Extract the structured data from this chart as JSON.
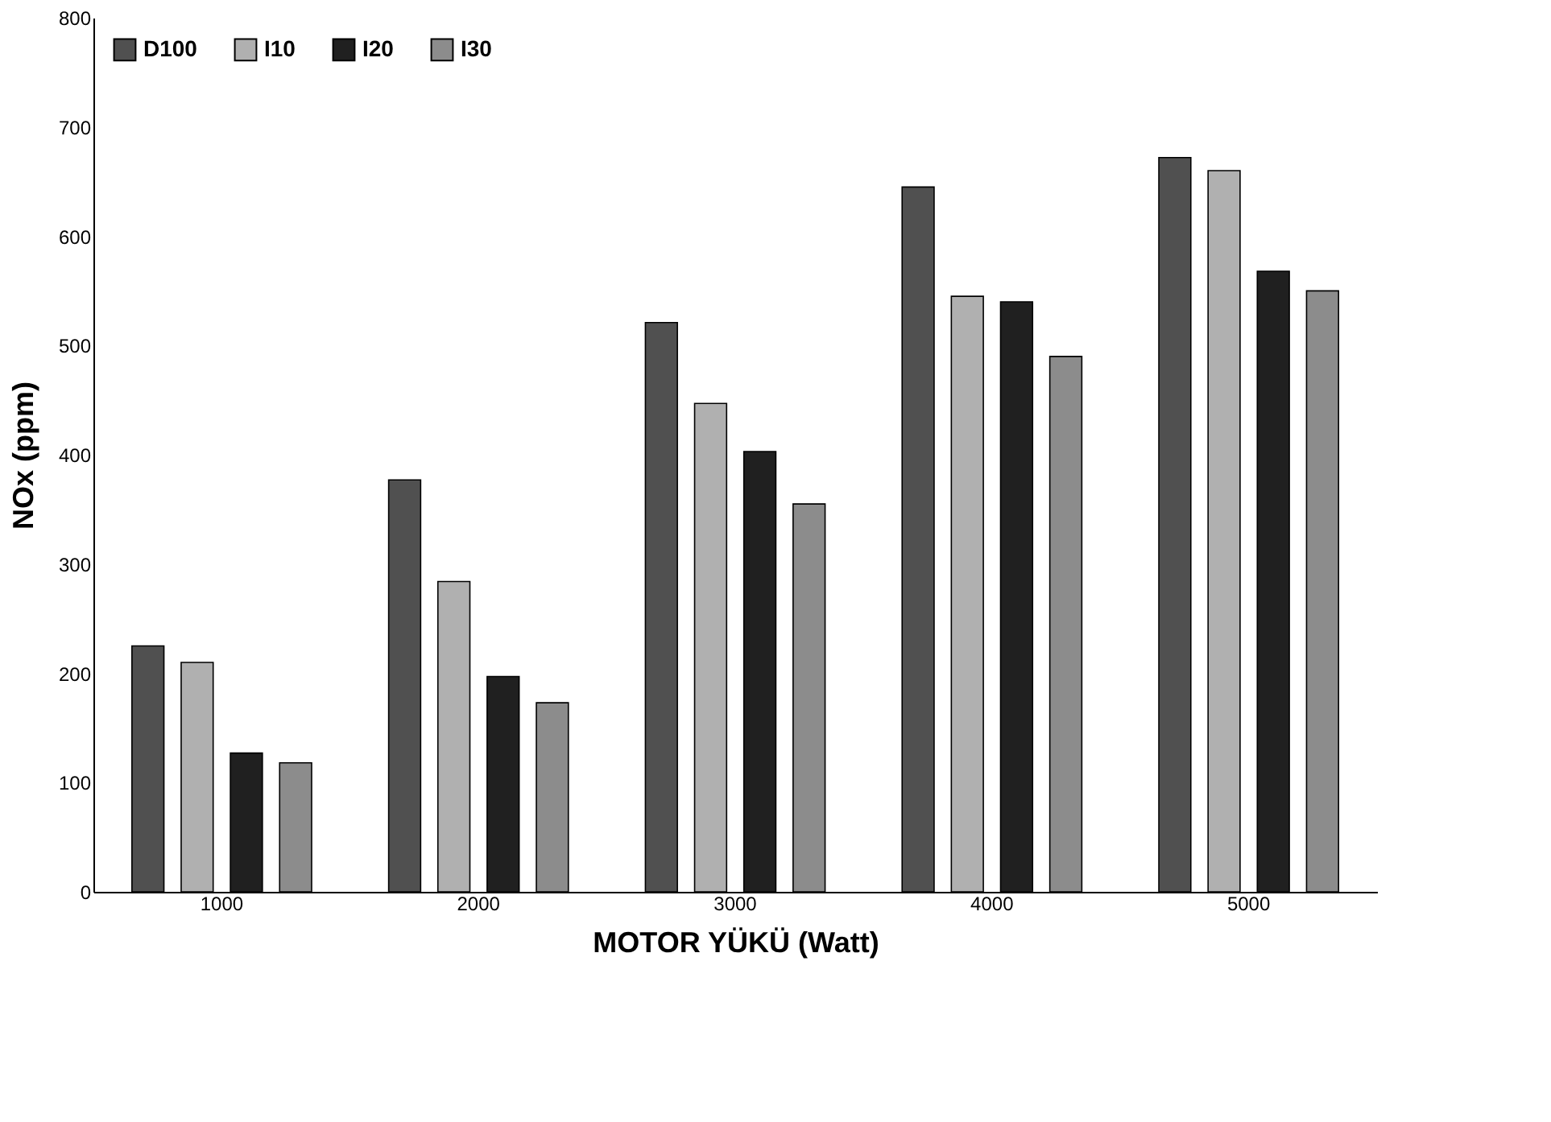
{
  "chart_data": {
    "type": "bar",
    "xlabel": "MOTOR YÜKÜ (Watt)",
    "ylabel": "NOx (ppm)",
    "categories": [
      "1000",
      "2000",
      "3000",
      "4000",
      "5000"
    ],
    "series": [
      {
        "name": "D100",
        "color": "#505050",
        "values": [
          225,
          377,
          521,
          645,
          672
        ]
      },
      {
        "name": "I10",
        "color": "#b0b0b0",
        "values": [
          210,
          284,
          447,
          545,
          660
        ]
      },
      {
        "name": "I20",
        "color": "#202020",
        "values": [
          127,
          197,
          403,
          540,
          568
        ]
      },
      {
        "name": "I30",
        "color": "#8c8c8c",
        "values": [
          118,
          173,
          355,
          490,
          550
        ]
      }
    ],
    "ylim": [
      0,
      800
    ],
    "yticks": [
      0,
      100,
      200,
      300,
      400,
      500,
      600,
      700,
      800
    ],
    "grid": false,
    "legend": "top left"
  }
}
